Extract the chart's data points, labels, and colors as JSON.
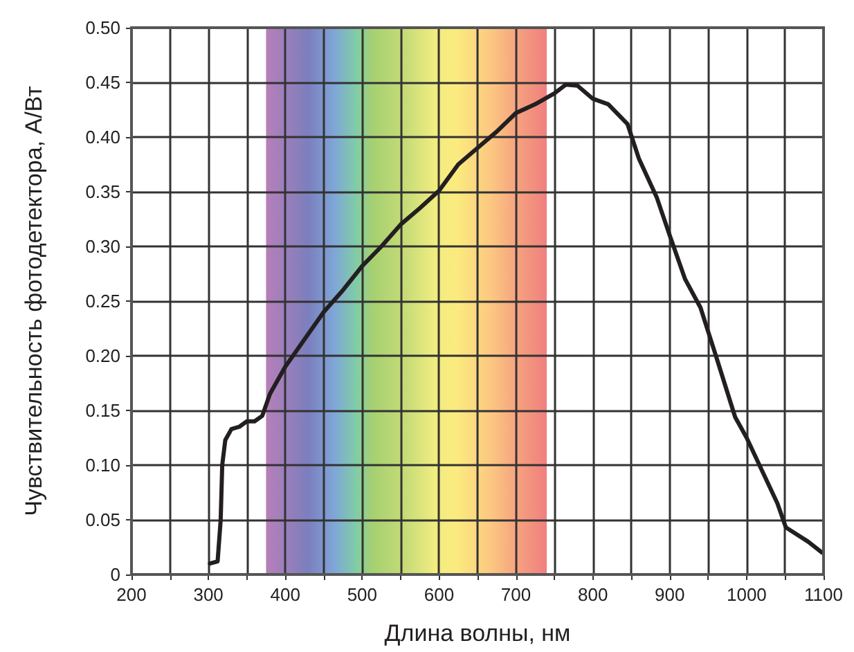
{
  "chart_data": {
    "type": "line",
    "xlabel": "Длина волны, нм",
    "ylabel": "Чувствительность фотодетектора, А/Вт",
    "xlim": [
      200,
      1100
    ],
    "xticks": [
      200,
      {
        "value": 250,
        "label": null
      },
      300,
      {
        "value": 350,
        "label": null
      },
      400,
      {
        "value": 450,
        "label": null
      },
      500,
      {
        "value": 550,
        "label": null
      },
      600,
      {
        "value": 650,
        "label": null
      },
      700,
      {
        "value": 750,
        "label": null
      },
      800,
      {
        "value": 850,
        "label": null
      },
      900,
      {
        "value": 950,
        "label": null
      },
      1000,
      {
        "value": 1050,
        "label": null
      },
      1100
    ],
    "ylim": [
      0,
      0.5
    ],
    "yticks": [
      0,
      {
        "value": 0.05,
        "label": "0.05"
      },
      {
        "value": 0.1,
        "label": "0.10"
      },
      {
        "value": 0.15,
        "label": "0.15"
      },
      {
        "value": 0.2,
        "label": "0.20"
      },
      {
        "value": 0.25,
        "label": "0.25"
      },
      {
        "value": 0.3,
        "label": "0.30"
      },
      {
        "value": 0.35,
        "label": "0.35"
      },
      {
        "value": 0.4,
        "label": "0.40"
      },
      {
        "value": 0.45,
        "label": "0.45"
      },
      {
        "value": 0.5,
        "label": "0.50"
      }
    ],
    "grid": true,
    "marker": "none",
    "line_style": "solid",
    "bands": [
      {
        "axis": "x",
        "from": 375,
        "to": 740
      }
    ],
    "series": [
      {
        "color": "#231f20",
        "x": [
          302,
          312,
          316,
          318,
          322,
          330,
          340,
          350,
          360,
          370,
          380,
          400,
          425,
          450,
          475,
          500,
          525,
          550,
          575,
          600,
          625,
          650,
          675,
          700,
          725,
          750,
          765,
          780,
          800,
          820,
          845,
          860,
          883,
          900,
          920,
          940,
          960,
          985,
          1000,
          1020,
          1040,
          1051,
          1080,
          1098
        ],
        "values": [
          0.01,
          0.012,
          0.05,
          0.1,
          0.123,
          0.133,
          0.135,
          0.14,
          0.14,
          0.145,
          0.165,
          0.19,
          0.215,
          0.24,
          0.26,
          0.282,
          0.3,
          0.32,
          0.335,
          0.351,
          0.375,
          0.39,
          0.405,
          0.422,
          0.43,
          0.44,
          0.448,
          0.447,
          0.435,
          0.43,
          0.412,
          0.38,
          0.345,
          0.31,
          0.27,
          0.244,
          0.2,
          0.144,
          0.125,
          0.095,
          0.065,
          0.043,
          0.03,
          0.02
        ]
      }
    ]
  }
}
